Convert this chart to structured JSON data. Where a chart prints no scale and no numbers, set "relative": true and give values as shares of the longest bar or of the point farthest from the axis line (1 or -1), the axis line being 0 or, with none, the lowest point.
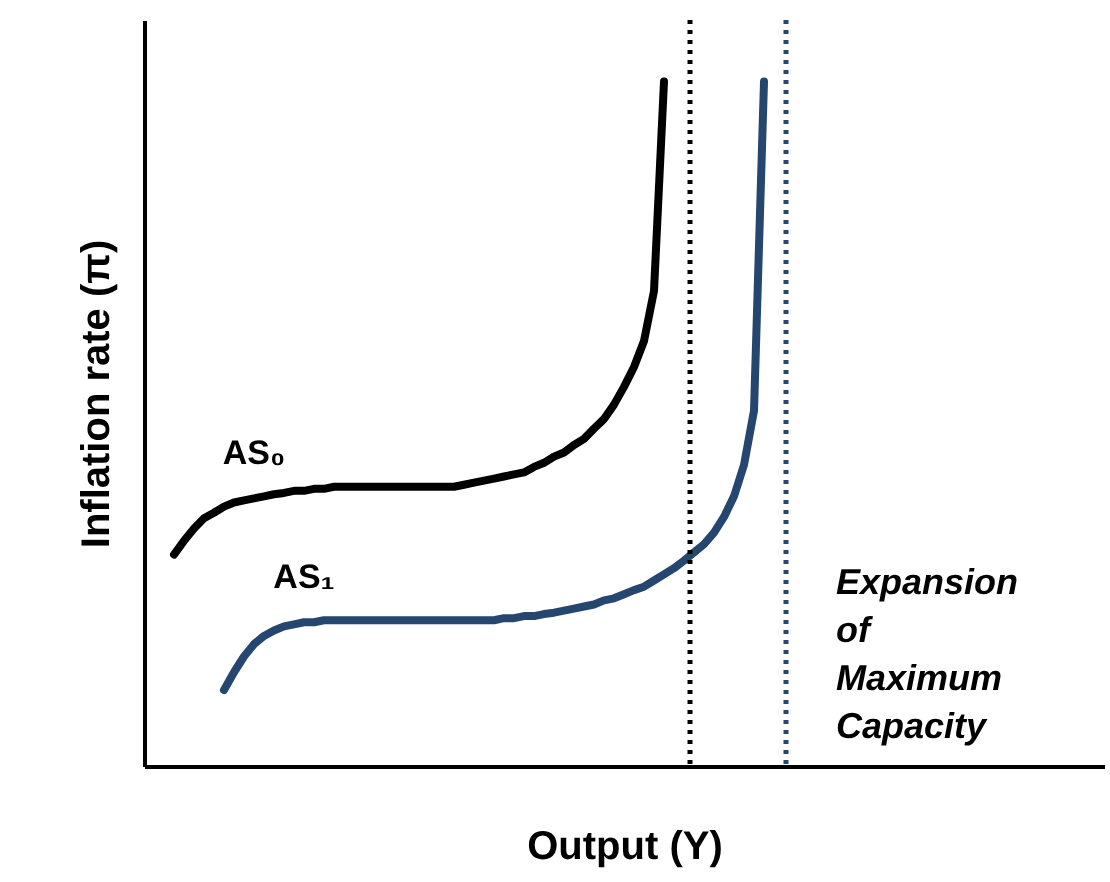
{
  "chart_data": {
    "type": "line",
    "relative": true,
    "xlabel": "Output (Y)",
    "ylabel": "Inflation rate (π)",
    "categories": [
      null,
      null,
      null,
      null,
      null,
      null,
      null,
      null,
      null,
      null,
      null,
      null,
      null,
      null,
      null,
      null,
      null,
      null,
      null,
      null,
      null,
      null,
      null,
      null,
      null,
      null,
      null,
      null,
      null,
      null,
      null,
      null,
      null,
      null,
      null,
      null,
      null,
      null,
      null,
      null,
      null,
      null,
      null,
      null,
      null,
      null,
      null,
      null,
      null,
      null,
      null,
      null,
      null,
      null,
      null,
      null,
      null,
      null,
      null,
      null,
      null,
      null,
      null,
      null,
      null,
      null,
      null,
      null,
      null,
      null,
      null,
      null,
      null,
      null,
      null,
      null,
      null,
      null,
      null,
      null,
      null,
      null,
      null,
      null,
      null,
      null,
      null,
      null,
      null,
      null,
      null,
      null,
      null,
      null,
      null,
      null,
      null
    ],
    "tick_labels": false,
    "grid": false,
    "marker": "none",
    "line_style": "solid",
    "series": [
      {
        "name": "AS₀",
        "color": "#000000",
        "values": [
          null,
          null,
          null,
          0.309,
          0.329,
          0.347,
          0.362,
          0.37,
          0.379,
          0.385,
          0.388,
          0.391,
          0.394,
          0.397,
          0.399,
          0.402,
          0.402,
          0.405,
          0.405,
          0.408,
          0.408,
          0.408,
          0.408,
          0.408,
          0.408,
          0.408,
          0.408,
          0.408,
          0.408,
          0.408,
          0.408,
          0.408,
          0.411,
          0.414,
          0.417,
          0.42,
          0.423,
          0.426,
          0.429,
          0.437,
          0.443,
          0.452,
          0.458,
          0.469,
          0.478,
          0.493,
          0.507,
          0.528,
          0.554,
          0.583,
          0.621,
          0.694,
          1.0,
          null,
          null,
          null,
          null,
          null,
          null,
          null,
          null,
          null,
          null,
          null,
          null,
          null,
          null,
          null,
          null,
          null,
          null,
          null,
          null,
          null,
          null,
          null,
          null,
          null,
          null,
          null,
          null,
          null,
          null,
          null,
          null,
          null,
          null,
          null,
          null,
          null,
          null,
          null,
          null,
          null,
          null,
          null,
          null
        ]
      },
      {
        "name": "AS₁",
        "color": "#24466f",
        "values": [
          null,
          null,
          null,
          null,
          null,
          null,
          null,
          null,
          0.111,
          0.137,
          0.16,
          0.178,
          0.19,
          0.198,
          0.204,
          0.207,
          0.21,
          0.21,
          0.213,
          0.213,
          0.213,
          0.213,
          0.213,
          0.213,
          0.213,
          0.213,
          0.213,
          0.213,
          0.213,
          0.213,
          0.213,
          0.213,
          0.213,
          0.213,
          0.213,
          0.213,
          0.216,
          0.216,
          0.219,
          0.219,
          0.222,
          0.224,
          0.227,
          0.23,
          0.233,
          0.236,
          0.242,
          0.245,
          0.251,
          0.257,
          0.262,
          0.271,
          0.28,
          0.289,
          0.3,
          0.312,
          0.324,
          0.341,
          0.364,
          0.394,
          0.44,
          0.519,
          1.0,
          null,
          null,
          null,
          null,
          null,
          null,
          null,
          null,
          null,
          null,
          null,
          null,
          null,
          null,
          null,
          null,
          null,
          null,
          null,
          null,
          null,
          null,
          null,
          null,
          null,
          null,
          null,
          null,
          null,
          null,
          null,
          null,
          null,
          null
        ]
      }
    ],
    "annotations": [
      "Expansion of Maximum Capacity"
    ]
  }
}
